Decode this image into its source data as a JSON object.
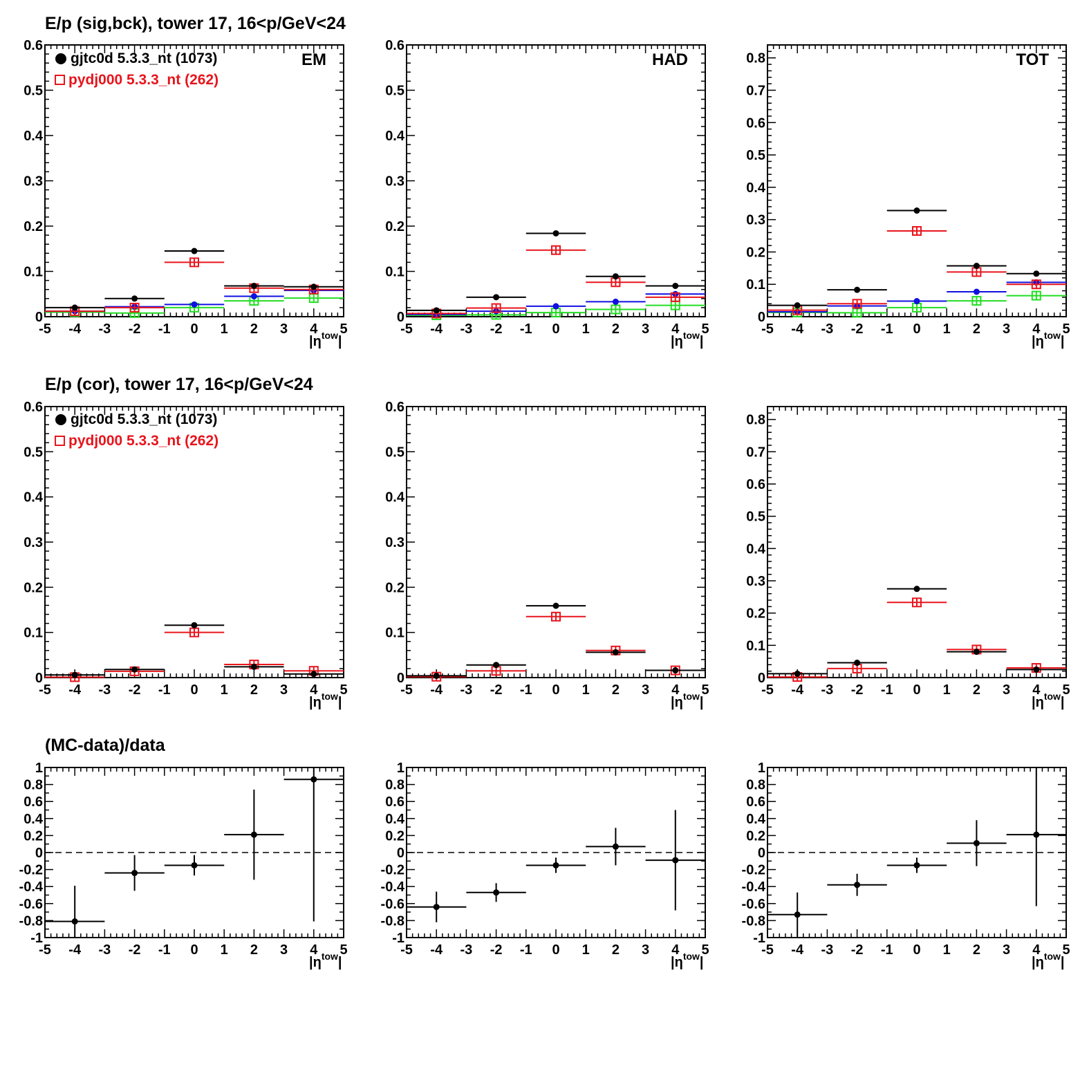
{
  "row_titles": [
    "E/p (sig,bck), tower 17, 16<p/GeV<24",
    "E/p (cor), tower 17, 16<p/GeV<24",
    "(MC-data)/data"
  ],
  "legend": {
    "entries": [
      {
        "label": "gjtc0d 5.3.3_nt (1073)",
        "color": "#000000",
        "marker": "filled-circle"
      },
      {
        "label": "pydj000 5.3.3_nt (262)",
        "color": "#e8141c",
        "marker": "open-square"
      }
    ]
  },
  "colors": {
    "data": "#000000",
    "mc": "#e8141c",
    "data_bck": "#1010e0",
    "mc_bck": "#22dd22"
  },
  "chart_data": [
    {
      "type": "scatter",
      "panel": "EM",
      "row": 0,
      "col": 0,
      "label": "EM",
      "xlabel": "|η^tow|",
      "xlim": [
        -5,
        5
      ],
      "ylim": [
        0,
        0.6
      ],
      "yticks": [
        0,
        0.1,
        0.2,
        0.3,
        0.4,
        0.5,
        0.6
      ],
      "ytick_labels": [
        "0",
        "0.1",
        "0.2",
        "0.3",
        "0.4",
        "0.5",
        "0.6"
      ],
      "x_bins": [
        [
          -5,
          -3
        ],
        [
          -3,
          -1
        ],
        [
          -1,
          1
        ],
        [
          1,
          3
        ],
        [
          3,
          5
        ]
      ],
      "x_centers": [
        -4,
        -2,
        0,
        2,
        4
      ],
      "series": [
        {
          "name": "gjtc0d 5.3.3_nt (1073)",
          "color": "#000000",
          "marker": "dot",
          "values": [
            0.02,
            0.04,
            0.145,
            0.068,
            0.066
          ]
        },
        {
          "name": "pydj000 5.3.3_nt (262)",
          "color": "#e8141c",
          "marker": "open-square",
          "values": [
            0.012,
            0.02,
            0.12,
            0.063,
            0.06
          ]
        },
        {
          "color": "#1010e0",
          "marker": "dot",
          "values": [
            0.012,
            0.022,
            0.027,
            0.045,
            0.058
          ]
        },
        {
          "color": "#22dd22",
          "marker": "open-square",
          "values": [
            0.01,
            0.008,
            0.02,
            0.035,
            0.041
          ]
        }
      ]
    },
    {
      "type": "scatter",
      "panel": "HAD",
      "row": 0,
      "col": 1,
      "label": "HAD",
      "xlabel": "|η^tow|",
      "xlim": [
        -5,
        5
      ],
      "ylim": [
        0,
        0.6
      ],
      "yticks": [
        0,
        0.1,
        0.2,
        0.3,
        0.4,
        0.5,
        0.6
      ],
      "ytick_labels": [
        "0",
        "0.1",
        "0.2",
        "0.3",
        "0.4",
        "0.5",
        "0.6"
      ],
      "x_bins": [
        [
          -5,
          -3
        ],
        [
          -3,
          -1
        ],
        [
          -1,
          1
        ],
        [
          1,
          3
        ],
        [
          3,
          5
        ]
      ],
      "x_centers": [
        -4,
        -2,
        0,
        2,
        4
      ],
      "series": [
        {
          "name": "gjtc0d 5.3.3_nt (1073)",
          "color": "#000000",
          "marker": "dot",
          "values": [
            0.014,
            0.043,
            0.184,
            0.089,
            0.068
          ]
        },
        {
          "name": "pydj000 5.3.3_nt (262)",
          "color": "#e8141c",
          "marker": "open-square",
          "values": [
            0.007,
            0.019,
            0.147,
            0.076,
            0.043
          ]
        },
        {
          "color": "#1010e0",
          "marker": "dot",
          "values": [
            0.005,
            0.012,
            0.023,
            0.033,
            0.05
          ]
        },
        {
          "color": "#22dd22",
          "marker": "open-square",
          "values": [
            0.003,
            0.004,
            0.009,
            0.016,
            0.025
          ]
        }
      ]
    },
    {
      "type": "scatter",
      "panel": "TOT",
      "row": 0,
      "col": 2,
      "label": "TOT",
      "xlabel": "|η^tow|",
      "xlim": [
        -5,
        5
      ],
      "ylim": [
        0,
        0.84
      ],
      "yticks": [
        0,
        0.1,
        0.2,
        0.3,
        0.4,
        0.5,
        0.6,
        0.7,
        0.8
      ],
      "ytick_labels": [
        "0",
        "0.1",
        "0.2",
        "0.3",
        "0.4",
        "0.5",
        "0.6",
        "0.7",
        "0.8"
      ],
      "x_bins": [
        [
          -5,
          -3
        ],
        [
          -3,
          -1
        ],
        [
          -1,
          1
        ],
        [
          1,
          3
        ],
        [
          3,
          5
        ]
      ],
      "x_centers": [
        -4,
        -2,
        0,
        2,
        4
      ],
      "series": [
        {
          "name": "gjtc0d 5.3.3_nt (1073)",
          "color": "#000000",
          "marker": "dot",
          "values": [
            0.035,
            0.083,
            0.328,
            0.157,
            0.133
          ]
        },
        {
          "name": "pydj000 5.3.3_nt (262)",
          "color": "#e8141c",
          "marker": "open-square",
          "values": [
            0.02,
            0.04,
            0.265,
            0.138,
            0.1
          ]
        },
        {
          "color": "#1010e0",
          "marker": "dot",
          "values": [
            0.015,
            0.033,
            0.048,
            0.077,
            0.106
          ]
        },
        {
          "color": "#22dd22",
          "marker": "open-square",
          "values": [
            0.013,
            0.012,
            0.028,
            0.049,
            0.065
          ]
        }
      ]
    },
    {
      "type": "scatter",
      "panel": "EM corrected",
      "row": 1,
      "col": 0,
      "xlabel": "|η^tow|",
      "xlim": [
        -5,
        5
      ],
      "ylim": [
        0,
        0.6
      ],
      "yticks": [
        0,
        0.1,
        0.2,
        0.3,
        0.4,
        0.5,
        0.6
      ],
      "ytick_labels": [
        "0",
        "0.1",
        "0.2",
        "0.3",
        "0.4",
        "0.5",
        "0.6"
      ],
      "x_bins": [
        [
          -5,
          -3
        ],
        [
          -3,
          -1
        ],
        [
          -1,
          1
        ],
        [
          1,
          3
        ],
        [
          3,
          5
        ]
      ],
      "x_centers": [
        -4,
        -2,
        0,
        2,
        4
      ],
      "series": [
        {
          "name": "gjtc0d 5.3.3_nt (1073)",
          "color": "#000000",
          "marker": "dot",
          "values": [
            0.006,
            0.018,
            0.116,
            0.024,
            0.008
          ]
        },
        {
          "name": "pydj000 5.3.3_nt (262)",
          "color": "#e8141c",
          "marker": "open-square",
          "values": [
            0.001,
            0.014,
            0.1,
            0.029,
            0.015
          ]
        }
      ]
    },
    {
      "type": "scatter",
      "panel": "HAD corrected",
      "row": 1,
      "col": 1,
      "xlabel": "|η^tow|",
      "xlim": [
        -5,
        5
      ],
      "ylim": [
        0,
        0.6
      ],
      "yticks": [
        0,
        0.1,
        0.2,
        0.3,
        0.4,
        0.5,
        0.6
      ],
      "ytick_labels": [
        "0",
        "0.1",
        "0.2",
        "0.3",
        "0.4",
        "0.5",
        "0.6"
      ],
      "x_bins": [
        [
          -5,
          -3
        ],
        [
          -3,
          -1
        ],
        [
          -1,
          1
        ],
        [
          1,
          3
        ],
        [
          3,
          5
        ]
      ],
      "x_centers": [
        -4,
        -2,
        0,
        2,
        4
      ],
      "series": [
        {
          "name": "gjtc0d 5.3.3_nt (1073)",
          "color": "#000000",
          "marker": "dot",
          "values": [
            0.004,
            0.028,
            0.159,
            0.056,
            0.016
          ]
        },
        {
          "name": "pydj000 5.3.3_nt (262)",
          "color": "#e8141c",
          "marker": "open-square",
          "values": [
            0.002,
            0.015,
            0.135,
            0.06,
            0.016
          ]
        }
      ]
    },
    {
      "type": "scatter",
      "panel": "TOT corrected",
      "row": 1,
      "col": 2,
      "xlabel": "|η^tow|",
      "xlim": [
        -5,
        5
      ],
      "ylim": [
        0,
        0.84
      ],
      "yticks": [
        0,
        0.1,
        0.2,
        0.3,
        0.4,
        0.5,
        0.6,
        0.7,
        0.8
      ],
      "ytick_labels": [
        "0",
        "0.1",
        "0.2",
        "0.3",
        "0.4",
        "0.5",
        "0.6",
        "0.7",
        "0.8"
      ],
      "x_bins": [
        [
          -5,
          -3
        ],
        [
          -3,
          -1
        ],
        [
          -1,
          1
        ],
        [
          1,
          3
        ],
        [
          3,
          5
        ]
      ],
      "x_centers": [
        -4,
        -2,
        0,
        2,
        4
      ],
      "series": [
        {
          "name": "gjtc0d 5.3.3_nt (1073)",
          "color": "#000000",
          "marker": "dot",
          "values": [
            0.012,
            0.046,
            0.275,
            0.08,
            0.025
          ]
        },
        {
          "name": "pydj000 5.3.3_nt (262)",
          "color": "#e8141c",
          "marker": "open-square",
          "values": [
            0.002,
            0.028,
            0.233,
            0.087,
            0.03
          ]
        }
      ]
    },
    {
      "type": "scatter",
      "panel": "EM ratio",
      "row": 2,
      "col": 0,
      "xlabel": "|η^tow|",
      "xlim": [
        -5,
        5
      ],
      "ylim": [
        -1,
        1
      ],
      "yticks": [
        -1,
        -0.8,
        -0.6,
        -0.4,
        -0.2,
        0,
        0.2,
        0.4,
        0.6,
        0.8,
        1
      ],
      "ytick_labels": [
        "-1",
        "-0.8",
        "-0.6",
        "-0.4",
        "-0.2",
        "0",
        "0.2",
        "0.4",
        "0.6",
        "0.8",
        "1"
      ],
      "reference_line": 0,
      "x_bins": [
        [
          -5,
          -3
        ],
        [
          -3,
          -1
        ],
        [
          -1,
          1
        ],
        [
          1,
          3
        ],
        [
          3,
          5
        ]
      ],
      "x_centers": [
        -4,
        -2,
        0,
        2,
        4
      ],
      "series": [
        {
          "color": "#000000",
          "marker": "dot",
          "values": [
            -0.81,
            -0.24,
            -0.15,
            0.21,
            0.86
          ],
          "errors": [
            0.42,
            0.21,
            0.12,
            0.53,
            1.67
          ]
        }
      ]
    },
    {
      "type": "scatter",
      "panel": "HAD ratio",
      "row": 2,
      "col": 1,
      "xlabel": "|η^tow|",
      "xlim": [
        -5,
        5
      ],
      "ylim": [
        -1,
        1
      ],
      "yticks": [
        -1,
        -0.8,
        -0.6,
        -0.4,
        -0.2,
        0,
        0.2,
        0.4,
        0.6,
        0.8,
        1
      ],
      "ytick_labels": [
        "-1",
        "-0.8",
        "-0.6",
        "-0.4",
        "-0.2",
        "0",
        "0.2",
        "0.4",
        "0.6",
        "0.8",
        "1"
      ],
      "reference_line": 0,
      "x_bins": [
        [
          -5,
          -3
        ],
        [
          -3,
          -1
        ],
        [
          -1,
          1
        ],
        [
          1,
          3
        ],
        [
          3,
          5
        ]
      ],
      "x_centers": [
        -4,
        -2,
        0,
        2,
        4
      ],
      "series": [
        {
          "color": "#000000",
          "marker": "dot",
          "values": [
            -0.64,
            -0.47,
            -0.15,
            0.07,
            -0.09
          ],
          "errors": [
            0.18,
            0.11,
            0.09,
            0.22,
            0.59
          ]
        }
      ]
    },
    {
      "type": "scatter",
      "panel": "TOT ratio",
      "row": 2,
      "col": 2,
      "xlabel": "|η^tow|",
      "xlim": [
        -5,
        5
      ],
      "ylim": [
        -1,
        1
      ],
      "yticks": [
        -1,
        -0.8,
        -0.6,
        -0.4,
        -0.2,
        0,
        0.2,
        0.4,
        0.6,
        0.8,
        1
      ],
      "ytick_labels": [
        "-1",
        "-0.8",
        "-0.6",
        "-0.4",
        "-0.2",
        "0",
        "0.2",
        "0.4",
        "0.6",
        "0.8",
        "1"
      ],
      "reference_line": 0,
      "x_bins": [
        [
          -5,
          -3
        ],
        [
          -3,
          -1
        ],
        [
          -1,
          1
        ],
        [
          1,
          3
        ],
        [
          3,
          5
        ]
      ],
      "x_centers": [
        -4,
        -2,
        0,
        2,
        4
      ],
      "series": [
        {
          "color": "#000000",
          "marker": "dot",
          "values": [
            -0.73,
            -0.38,
            -0.15,
            0.11,
            0.21
          ],
          "errors": [
            0.26,
            0.13,
            0.09,
            0.27,
            0.84
          ]
        }
      ]
    }
  ],
  "x_tick_labels": [
    "-5",
    "-4",
    "-3",
    "-2",
    "-1",
    "0",
    "1",
    "2",
    "3",
    "4",
    "5"
  ]
}
